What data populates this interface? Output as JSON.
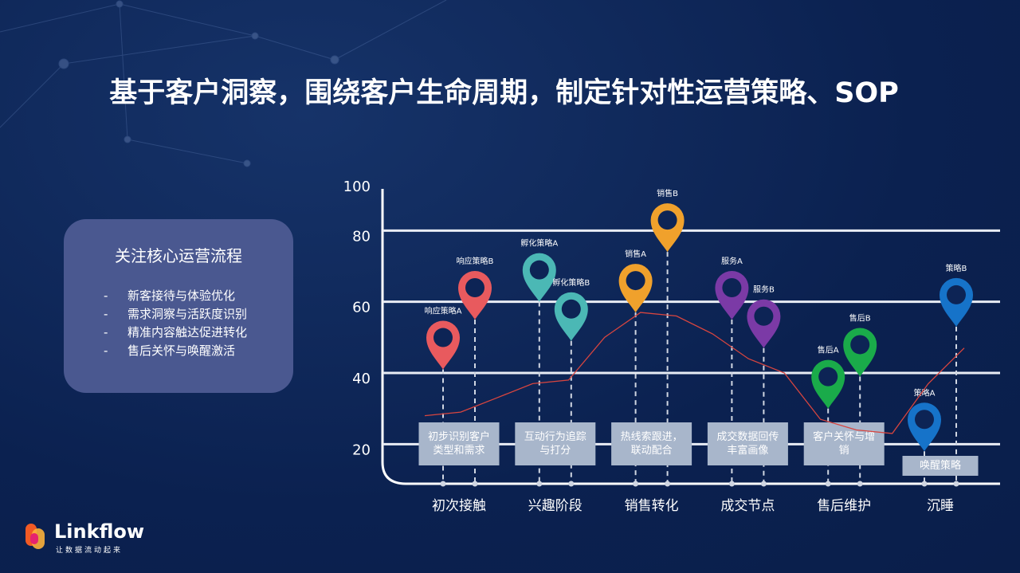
{
  "header": {
    "title": "基于客户洞察，围绕客户生命周期，制定针对性运营策略、SOP"
  },
  "panel": {
    "title": "关注核心运营流程",
    "items": [
      "新客接待与体验优化",
      "需求洞察与活跃度识别",
      "精准内容触达促进转化",
      "售后关怀与唤醒激活"
    ]
  },
  "logo": {
    "name": "Linkflow",
    "slogan": "让数据流动起来"
  },
  "chart_data": {
    "type": "pin",
    "ylim": [
      10,
      100
    ],
    "yticks": [
      20,
      40,
      60,
      80,
      100
    ],
    "grid": true,
    "line": {
      "color": "#d8453f",
      "values": [
        28,
        29,
        33,
        37,
        38,
        50,
        57,
        56,
        51,
        44,
        40,
        27,
        24,
        23,
        37,
        47
      ]
    },
    "stages": [
      {
        "name": "初次接触",
        "box": "初步识别客户类型和需求",
        "pins": [
          {
            "label": "响应策略A",
            "value": 41,
            "color": "#e85a5e"
          },
          {
            "label": "响应策略B",
            "value": 55,
            "color": "#e85a5e"
          }
        ]
      },
      {
        "name": "兴趣阶段",
        "box": "互动行为追踪与打分",
        "pins": [
          {
            "label": "孵化策略A",
            "value": 60,
            "color": "#4bb8b5"
          },
          {
            "label": "孵化策略B",
            "value": 49,
            "color": "#4bb8b5"
          }
        ]
      },
      {
        "name": "销售转化",
        "box": "热线索跟进，联动配合",
        "pins": [
          {
            "label": "销售A",
            "value": 57,
            "color": "#f0a12c"
          },
          {
            "label": "销售B",
            "value": 74,
            "color": "#f0a12c"
          }
        ]
      },
      {
        "name": "成交节点",
        "box": "成交数据回传丰富画像",
        "pins": [
          {
            "label": "服务A",
            "value": 55,
            "color": "#7b3aa6"
          },
          {
            "label": "服务B",
            "value": 47,
            "color": "#7b3aa6"
          }
        ]
      },
      {
        "name": "售后维护",
        "box": "客户关怀与增销",
        "pins": [
          {
            "label": "售后A",
            "value": 30,
            "color": "#1aab4a"
          },
          {
            "label": "售后B",
            "value": 39,
            "color": "#1aab4a"
          }
        ]
      },
      {
        "name": "沉睡",
        "box": "唤醒策略",
        "pins": [
          {
            "label": "策略A",
            "value": 18,
            "color": "#1673c9"
          },
          {
            "label": "策略B",
            "value": 53,
            "color": "#1673c9"
          }
        ]
      }
    ]
  }
}
